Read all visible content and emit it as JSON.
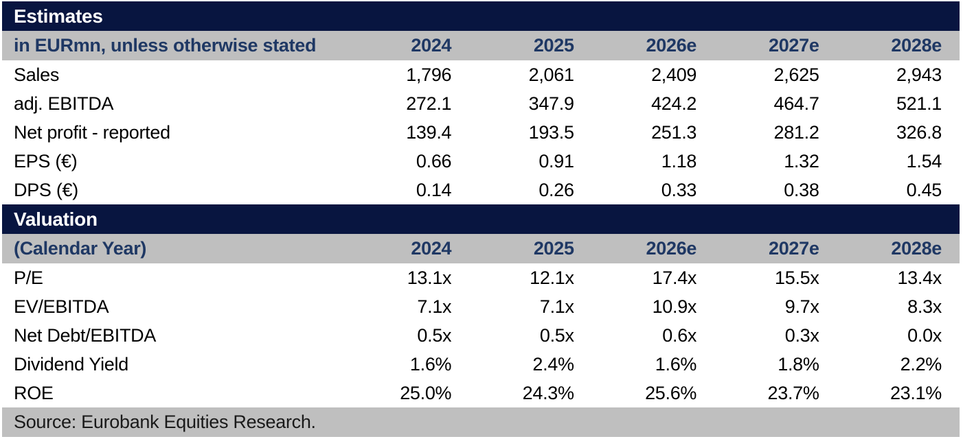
{
  "colors": {
    "section_bar_bg": "#081540",
    "section_bar_text": "#ffffff",
    "subheader_bg": "#bfbfbf",
    "subheader_text": "#1f3864",
    "data_text": "#000000",
    "source_bg": "#bfbfbf",
    "source_text": "#1a1a1a"
  },
  "sections": [
    {
      "title": "Estimates",
      "subheader_label": "in EURmn, unless otherwise stated",
      "years": [
        "2024",
        "2025",
        "2026e",
        "2027e",
        "2028e"
      ],
      "rows": [
        {
          "label": "Sales",
          "values": [
            "1,796",
            "2,061",
            "2,409",
            "2,625",
            "2,943"
          ]
        },
        {
          "label": "adj. EBITDA",
          "values": [
            "272.1",
            "347.9",
            "424.2",
            "464.7",
            "521.1"
          ]
        },
        {
          "label": "Net profit - reported",
          "values": [
            "139.4",
            "193.5",
            "251.3",
            "281.2",
            "326.8"
          ]
        },
        {
          "label": "EPS (€)",
          "values": [
            "0.66",
            "0.91",
            "1.18",
            "1.32",
            "1.54"
          ]
        },
        {
          "label": "DPS (€)",
          "values": [
            "0.14",
            "0.26",
            "0.33",
            "0.38",
            "0.45"
          ]
        }
      ]
    },
    {
      "title": "Valuation",
      "subheader_label": "(Calendar Year)",
      "years": [
        "2024",
        "2025",
        "2026e",
        "2027e",
        "2028e"
      ],
      "rows": [
        {
          "label": "P/E",
          "values": [
            "13.1x",
            "12.1x",
            "17.4x",
            "15.5x",
            "13.4x"
          ]
        },
        {
          "label": "EV/EBITDA",
          "values": [
            "7.1x",
            "7.1x",
            "10.9x",
            "9.7x",
            "8.3x"
          ]
        },
        {
          "label": "Net Debt/EBITDA",
          "values": [
            "0.5x",
            "0.5x",
            "0.6x",
            "0.3x",
            "0.0x"
          ]
        },
        {
          "label": "Dividend Yield",
          "values": [
            "1.6%",
            "2.4%",
            "1.6%",
            "1.8%",
            "2.2%"
          ]
        },
        {
          "label": "ROE",
          "values": [
            "25.0%",
            "24.3%",
            "25.6%",
            "23.7%",
            "23.1%"
          ]
        }
      ]
    }
  ],
  "footer": {
    "source": "Source: Eurobank Equities Research."
  }
}
